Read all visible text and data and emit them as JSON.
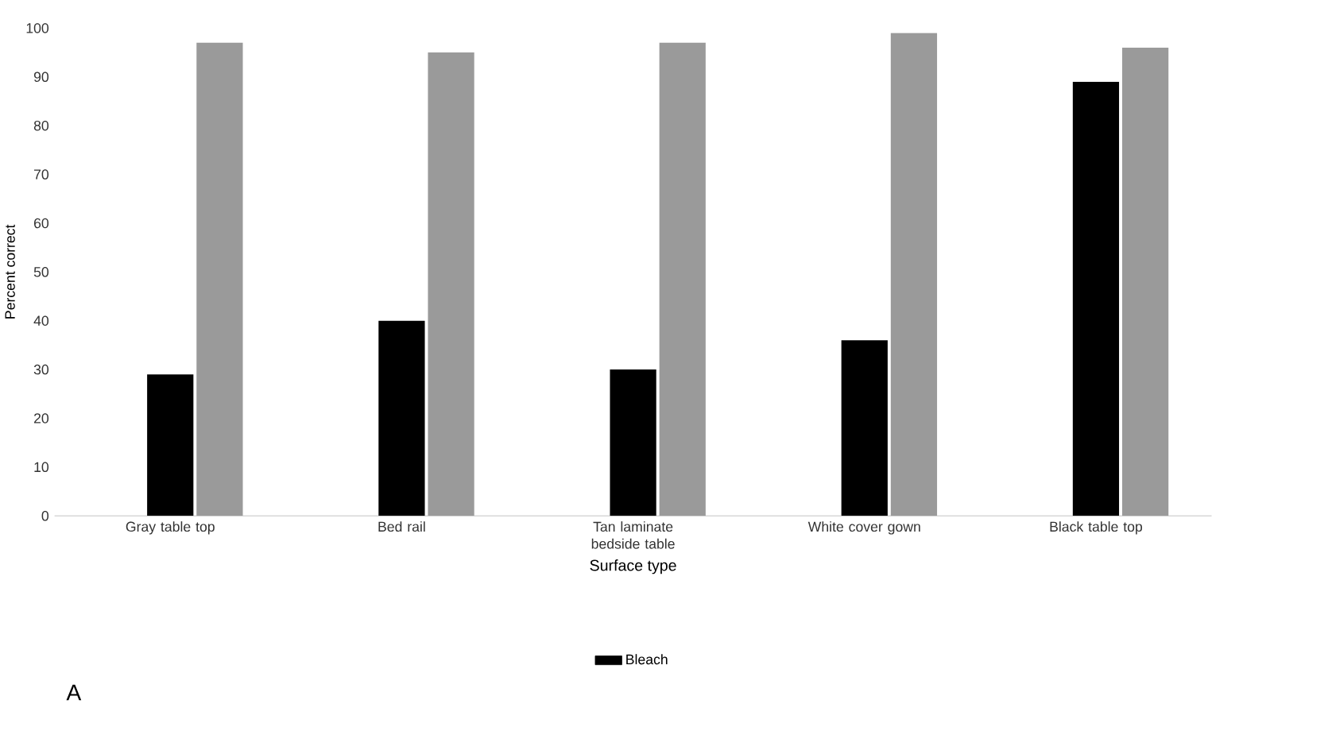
{
  "chart_data": {
    "type": "bar",
    "categories": [
      "Gray table top",
      "Bed rail",
      "Tan laminate bedside table",
      "White cover gown",
      "Black table top"
    ],
    "series": [
      {
        "name": "Bleach",
        "color": "#000000",
        "values": [
          29,
          40,
          30,
          36,
          89
        ]
      },
      {
        "color": "#9a9a9a",
        "values": [
          97,
          95,
          97,
          99,
          96
        ]
      }
    ],
    "xlabel": "Surface type",
    "ylabel": "Percent correct",
    "ylim": [
      0,
      100
    ],
    "yticks": [
      0,
      10,
      20,
      30,
      40,
      50,
      60,
      70,
      80,
      90,
      100
    ],
    "grid": false,
    "legend": "bottom",
    "annotations": [
      "A"
    ]
  }
}
